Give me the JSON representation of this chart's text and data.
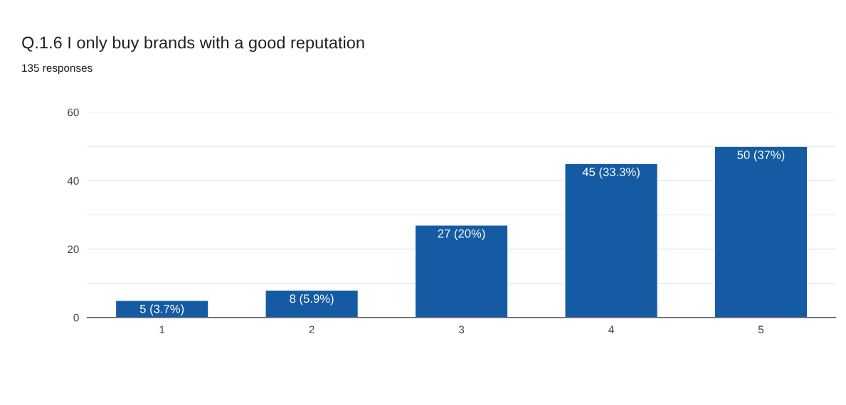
{
  "chart_data": {
    "type": "bar",
    "title": "Q.1.6 I only buy brands with a good reputation",
    "subtitle": "135 responses",
    "categories": [
      "1",
      "2",
      "3",
      "4",
      "5"
    ],
    "values": [
      5,
      8,
      27,
      45,
      50
    ],
    "value_labels": [
      "5 (3.7%)",
      "8 (5.9%)",
      "27 (20%)",
      "45 (33.3%)",
      "50 (37%)"
    ],
    "color": "#155ba3",
    "ylim": [
      0,
      60
    ],
    "yticks": [
      0,
      {
        "value": 10,
        "label": null
      },
      20,
      {
        "value": 30,
        "label": null
      },
      40,
      {
        "value": 50,
        "label": null
      },
      60
    ],
    "grid": "y",
    "legend": false
  }
}
